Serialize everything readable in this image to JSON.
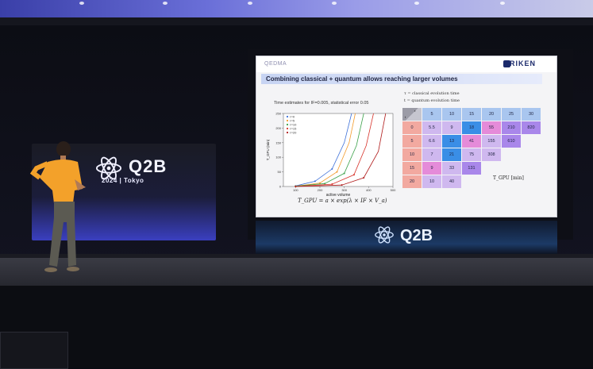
{
  "signs": {
    "left_brand": "Q2B",
    "left_sub": "2024 | Tokyo",
    "bottom_brand": "Q2B"
  },
  "slide": {
    "logo_left": "QEDMA",
    "logo_right": "RIKEN",
    "title": "Combining classical + quantum allows reaching larger volumes",
    "plot_caption": "Time estimates for IF=0.005, statistical error 0.05",
    "formula": "T_GPU = a × exp(λ × IF × V_a)",
    "legend_tau": "τ  = classical evolution time",
    "legend_t": "t  = quantum evolution time",
    "grid_unit_label": "T_GPU [min]"
  },
  "chart_data": {
    "type": "line",
    "title": "Time estimates for IF=0.005, statistical error 0.05",
    "xlabel": "active volume",
    "ylabel": "T_GPU (min)",
    "x_ticks": [
      "100",
      "200",
      "300",
      "400",
      "500"
    ],
    "y_ticks": [
      "0",
      "50",
      "100",
      "150",
      "200",
      "250"
    ],
    "xlim": [
      50,
      500
    ],
    "ylim": [
      0,
      250
    ],
    "series": [
      {
        "name": "τ=0",
        "color": "#3b6fd8",
        "points": [
          [
            100,
            2
          ],
          [
            180,
            18
          ],
          [
            250,
            60
          ],
          [
            300,
            150
          ],
          [
            330,
            250
          ]
        ]
      },
      {
        "name": "τ=5",
        "color": "#f39a2a",
        "points": [
          [
            100,
            1
          ],
          [
            200,
            12
          ],
          [
            270,
            50
          ],
          [
            320,
            150
          ],
          [
            345,
            250
          ]
        ]
      },
      {
        "name": "τ=10",
        "color": "#3ca14a",
        "points": [
          [
            100,
            1
          ],
          [
            220,
            10
          ],
          [
            300,
            45
          ],
          [
            350,
            140
          ],
          [
            380,
            250
          ]
        ]
      },
      {
        "name": "τ=15",
        "color": "#d7342b",
        "points": [
          [
            100,
            0
          ],
          [
            250,
            8
          ],
          [
            340,
            40
          ],
          [
            390,
            140
          ],
          [
            420,
            250
          ]
        ]
      },
      {
        "name": "τ=20",
        "color": "#b01b1b",
        "points": [
          [
            100,
            0
          ],
          [
            290,
            5
          ],
          [
            380,
            30
          ],
          [
            440,
            120
          ],
          [
            470,
            250
          ]
        ]
      }
    ]
  },
  "time_grid": {
    "corner_top": "τ",
    "corner_bottom": "t",
    "col_headers": [
      "5",
      "10",
      "15",
      "20",
      "25",
      "30"
    ],
    "rows": [
      {
        "tau": "0",
        "values": [
          "5.5",
          "9",
          "18",
          "55",
          "210",
          "820"
        ]
      },
      {
        "tau": "5",
        "values": [
          "6.6",
          "13",
          "41",
          "155",
          "610"
        ]
      },
      {
        "tau": "10",
        "values": [
          "7",
          "21",
          "75",
          "308"
        ]
      },
      {
        "tau": "15",
        "values": [
          "9",
          "33",
          "131"
        ]
      },
      {
        "tau": "20",
        "values": [
          "10",
          "40"
        ]
      }
    ],
    "colors": {
      "header": "#a9c6ef",
      "row_header": "#f2a9a0",
      "low": "#cfb8ef",
      "mid": "#8aa7f0",
      "blue": "#3a8ee6",
      "pink": "#e58bd9",
      "violet": "#a987ea"
    }
  }
}
